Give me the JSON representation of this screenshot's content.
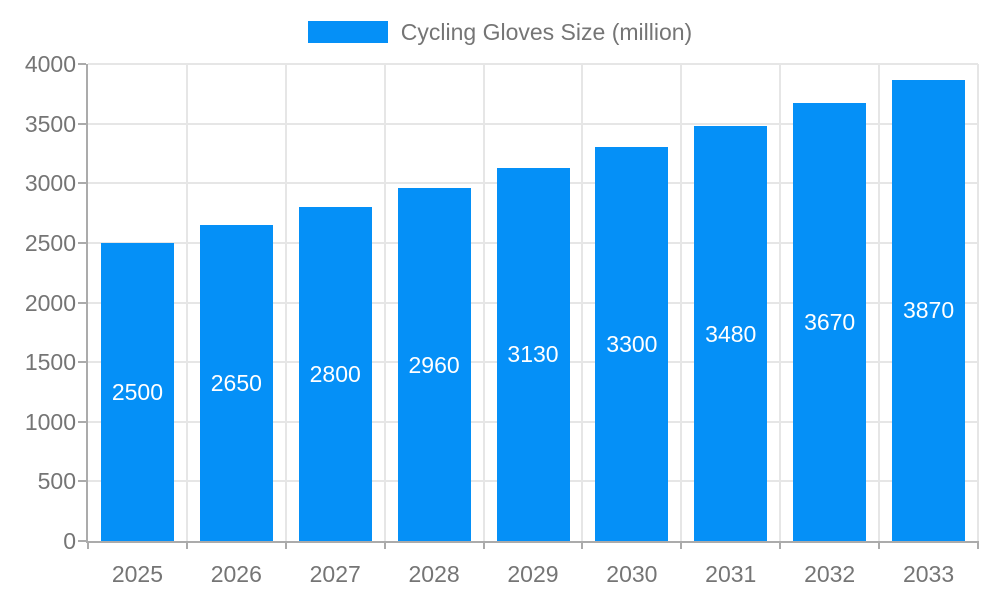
{
  "legend": {
    "label": "Cycling Gloves Size (million)",
    "swatch_color": "#0590f7"
  },
  "chart_data": {
    "type": "bar",
    "title": "Cycling Gloves Size (million)",
    "series_name": "Cycling Gloves Size (million)",
    "categories": [
      "2025",
      "2026",
      "2027",
      "2028",
      "2029",
      "2030",
      "2031",
      "2032",
      "2033"
    ],
    "values": [
      2500,
      2650,
      2800,
      2960,
      3130,
      3300,
      3480,
      3670,
      3870
    ],
    "data_labels": [
      "2500",
      "2650",
      "2800",
      "2960",
      "3130",
      "3300",
      "3480",
      "3670",
      "3870"
    ],
    "xlabel": "",
    "ylabel": "",
    "ylim": [
      0,
      4000
    ],
    "ytick_step": 500,
    "yticks": [
      0,
      500,
      1000,
      1500,
      2000,
      2500,
      3000,
      3500,
      4000
    ],
    "grid": true,
    "legend_position": "top",
    "bar_color": "#0590f7",
    "data_label_color": "#ffffff",
    "axis_text_color": "#757575",
    "grid_color": "#e6e6e6",
    "axis_line_color": "#ababab"
  }
}
